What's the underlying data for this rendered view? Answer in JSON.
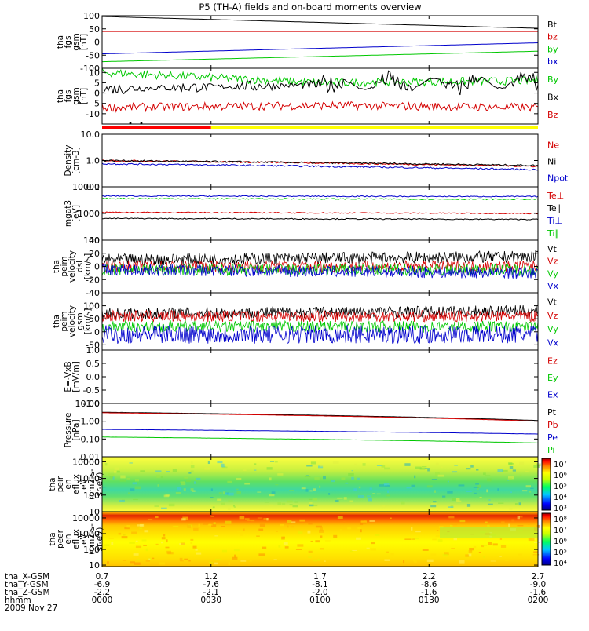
{
  "title": "P5 (TH-A) fields and on-board moments overview",
  "date": "2009 Nov 27",
  "orbit": {
    "labels": [
      "tha_X-GSM",
      "tha_Y-GSM",
      "tha_Z-GSM",
      "hhmm"
    ],
    "columns": [
      [
        "0.7",
        "-6.9",
        "-2.2",
        "0000"
      ],
      [
        "1.2",
        "-7.6",
        "-2.1",
        "0030"
      ],
      [
        "1.7",
        "-8.1",
        "-2.0",
        "0100"
      ],
      [
        "2.2",
        "-8.6",
        "-1.6",
        "0130"
      ],
      [
        "2.7",
        "-9.0",
        "-1.6",
        "0200"
      ]
    ]
  },
  "colors": {
    "black": "#000000",
    "red": "#d40000",
    "green": "#00c800",
    "blue": "#0000cc",
    "bar_red": "#ff0000",
    "bar_yellow": "#ffff00"
  },
  "colorbars": [
    {
      "name": "ion-flux",
      "labels": [
        "10⁷",
        "10⁶",
        "10⁵",
        "10⁴",
        "10³"
      ]
    },
    {
      "name": "electron-flux",
      "labels": [
        "10⁸",
        "10⁷",
        "10⁶",
        "10⁵",
        "10⁴"
      ]
    }
  ],
  "chart_data": [
    {
      "type": "line",
      "name": "fgs-gse",
      "ylabel": [
        "tha",
        "fgs",
        "gsm",
        "[nT]"
      ],
      "ylim": [
        -100,
        100
      ],
      "yticks": [
        "100",
        "50",
        "0",
        "-50",
        "-100"
      ],
      "x": [
        0,
        2
      ],
      "series": [
        {
          "name": "Bt",
          "color": "#000000",
          "values": [
            97,
            52
          ]
        },
        {
          "name": "bz",
          "color": "#d40000",
          "values": [
            40,
            40
          ]
        },
        {
          "name": "by",
          "color": "#00c800",
          "values": [
            -75,
            -35
          ]
        },
        {
          "name": "bx",
          "color": "#0000cc",
          "values": [
            -45,
            -3
          ]
        }
      ]
    },
    {
      "type": "line",
      "name": "fgs-dsl",
      "ylabel": [
        "tha",
        "fgs",
        "gsm",
        "[nT]"
      ],
      "ylim": [
        -15,
        12
      ],
      "yticks": [
        "10",
        "5",
        "0",
        "-5",
        "-10"
      ],
      "series": [
        {
          "name": "By",
          "color": "#00c800",
          "values": [
            10,
            5,
            6
          ]
        },
        {
          "name": "Bx",
          "color": "#000000",
          "values": [
            2,
            4,
            5
          ]
        },
        {
          "name": "Bz",
          "color": "#d40000",
          "values": [
            -7,
            -6,
            -7
          ]
        }
      ],
      "mode_bar": {
        "red_until_hhmm": "0030",
        "yellow_from_hhmm": "0030"
      }
    },
    {
      "type": "line",
      "name": "density",
      "scale": "log",
      "ylabel": [
        "Density",
        "[cm-3]"
      ],
      "ylim": [
        0.1,
        10
      ],
      "yticks": [
        "10.0",
        "1.0",
        "0.1"
      ],
      "series": [
        {
          "name": "Ne",
          "color": "#d40000",
          "values": [
            1.0,
            0.6
          ]
        },
        {
          "name": "Ni",
          "color": "#000000",
          "values": [
            1.0,
            0.65
          ]
        },
        {
          "name": "Npot",
          "color": "#0000cc",
          "values": [
            0.75,
            0.45
          ]
        }
      ]
    },
    {
      "type": "line",
      "name": "temperature",
      "scale": "log",
      "ylabel": [
        "mgat3",
        "[eV]"
      ],
      "ylim": [
        100,
        10000
      ],
      "yticks": [
        "10000",
        "1000",
        "100"
      ],
      "series": [
        {
          "name": "Te⊥",
          "color": "#d40000",
          "values": [
            1100,
            1000
          ]
        },
        {
          "name": "Te∥",
          "color": "#000000",
          "values": [
            650,
            600
          ]
        },
        {
          "name": "Ti⊥",
          "color": "#0000cc",
          "values": [
            4500,
            4300
          ]
        },
        {
          "name": "Ti∥",
          "color": "#00c800",
          "values": [
            3600,
            3400
          ]
        }
      ]
    },
    {
      "type": "line",
      "name": "esa-velocity-dsl",
      "ylabel": [
        "tha",
        "peim",
        "velocity",
        "dsl",
        "[km/s]"
      ],
      "ylim": [
        -40,
        40
      ],
      "yticks": [
        "40",
        "20",
        "0",
        "-20",
        "-40"
      ],
      "series": [
        {
          "name": "Vt",
          "color": "#000000",
          "values": [
            10,
            15
          ]
        },
        {
          "name": "Vz",
          "color": "#d40000",
          "values": [
            0,
            0
          ]
        },
        {
          "name": "Vy",
          "color": "#00c800",
          "values": [
            -5,
            -5
          ]
        },
        {
          "name": "Vx",
          "color": "#0000cc",
          "values": [
            -5,
            -10
          ]
        }
      ]
    },
    {
      "type": "line",
      "name": "esa-velocity-gsm",
      "ylabel": [
        "tha",
        "peim",
        "velocity",
        "gsm",
        "[km/s]"
      ],
      "ylim": [
        -70,
        150
      ],
      "yticks": [
        "100",
        "50",
        "0",
        "-50"
      ],
      "series": [
        {
          "name": "Vt",
          "color": "#000000",
          "values": [
            70,
            80
          ]
        },
        {
          "name": "Vz",
          "color": "#d40000",
          "values": [
            60,
            60
          ]
        },
        {
          "name": "Vy",
          "color": "#00c800",
          "values": [
            20,
            20
          ]
        },
        {
          "name": "Vx",
          "color": "#0000cc",
          "values": [
            -10,
            -10
          ]
        }
      ]
    },
    {
      "type": "line",
      "name": "e-vxb",
      "ylabel": [
        "E=-VxB",
        "[mV/m]"
      ],
      "ylim": [
        -1,
        1
      ],
      "yticks": [
        "1.0",
        "0.5",
        "0.0",
        "-0.5",
        "-1.0"
      ],
      "series": [
        {
          "name": "Ez",
          "color": "#d40000",
          "values": []
        },
        {
          "name": "Ey",
          "color": "#00c800",
          "values": []
        },
        {
          "name": "Ex",
          "color": "#0000cc",
          "values": []
        }
      ]
    },
    {
      "type": "line",
      "name": "pressure",
      "scale": "log",
      "ylabel": [
        "Pressure",
        "[nPa]"
      ],
      "ylim": [
        0.01,
        10
      ],
      "yticks": [
        "10.00",
        "1.00",
        "0.10",
        "0.01"
      ],
      "series": [
        {
          "name": "Pt",
          "color": "#000000",
          "values": [
            3.2,
            1.1
          ]
        },
        {
          "name": "Pb",
          "color": "#d40000",
          "values": [
            3.0,
            1.0
          ]
        },
        {
          "name": "Pe",
          "color": "#0000cc",
          "values": [
            0.35,
            0.19
          ]
        },
        {
          "name": "Pi",
          "color": "#00c800",
          "values": [
            0.13,
            0.06
          ]
        }
      ]
    },
    {
      "type": "heatmap",
      "name": "ion-spectrogram",
      "scale": "log",
      "ylabel": [
        "tha",
        "peir",
        "en",
        "eflux",
        "eV",
        "(cm2-s-",
        "sr-eV)"
      ],
      "ylim": [
        10,
        20000
      ],
      "yticks": [
        "10000",
        "1000",
        "100",
        "10"
      ]
    },
    {
      "type": "heatmap",
      "name": "electron-spectrogram",
      "scale": "log",
      "ylabel": [
        "tha",
        "peer",
        "en",
        "eflux",
        "eV",
        "(cm2-s-",
        "sr-eV)"
      ],
      "ylim": [
        8,
        25000
      ],
      "yticks": [
        "10000",
        "1000",
        "100",
        "10"
      ]
    }
  ]
}
